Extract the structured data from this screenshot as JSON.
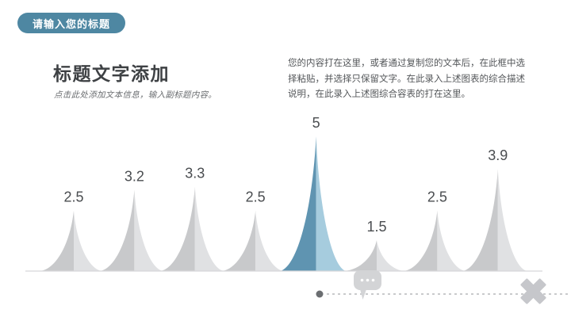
{
  "slide": {
    "badge": {
      "label": "请输入您的标题",
      "bg_color": "#4e87a2",
      "text_color": "#ffffff"
    },
    "title": "标题文字添加",
    "subtitle": "点击此处添加文本信息，输入副标题内容。",
    "body_text": "您的内容打在这里，或者通过复制您的文本后，在此框中选择粘贴，并选择只保留文字。在此录入上述图表的综合描述说明，在此录入上述图综合容表的打在这里。"
  },
  "chart_data": {
    "type": "area",
    "title": "",
    "xlabel": "",
    "ylabel": "",
    "values": [
      2.5,
      3.2,
      3.3,
      2.5,
      5,
      1.5,
      2.5,
      3.9
    ],
    "highlight_index": 4,
    "ylim": [
      0,
      5
    ],
    "grid": false,
    "legend": false,
    "annotations": [
      "2.5",
      "3.2",
      "3.3",
      "2.5",
      "5",
      "1.5",
      "2.5",
      "3.9"
    ],
    "colors": {
      "peak_left": "#c8c9cb",
      "peak_right": "#e0e1e3",
      "highlight_left": "#5f94b1",
      "highlight_right": "#a6ccde",
      "label": "#4a4d50",
      "baseline": "#d7d7d9",
      "dashed_line": "#c9cacc",
      "dot": "#6b6e71",
      "bubble": "#d3d4d6",
      "cross": "#c6c7cb"
    }
  }
}
